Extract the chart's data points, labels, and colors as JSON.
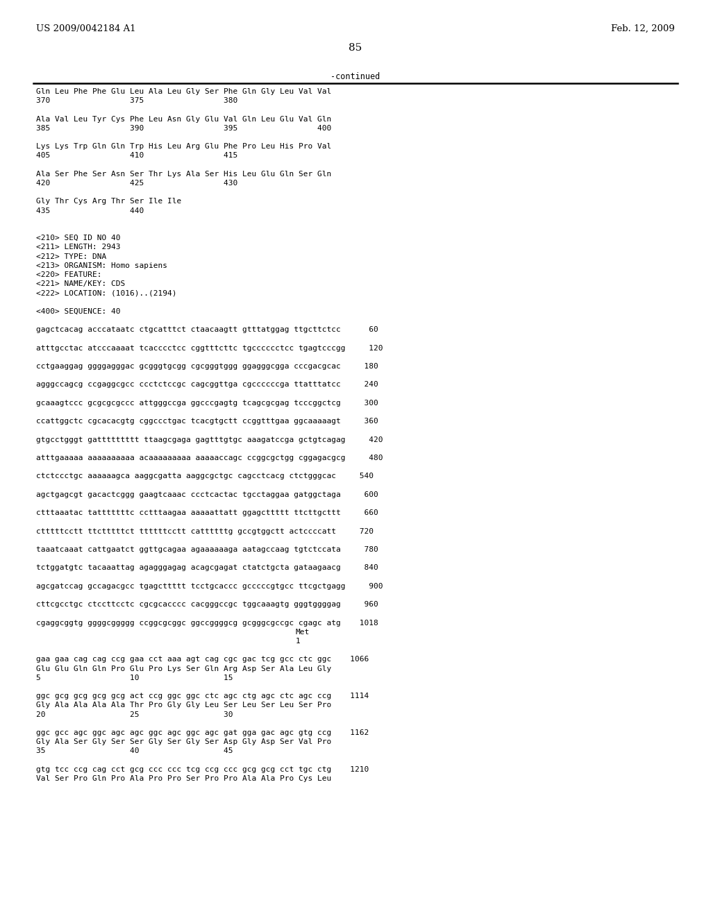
{
  "header_left": "US 2009/0042184 A1",
  "header_right": "Feb. 12, 2009",
  "page_number": "85",
  "continued_text": "-continued",
  "background_color": "#ffffff",
  "text_color": "#000000",
  "lines": [
    {
      "text": "Gln Leu Phe Phe Glu Leu Ala Leu Gly Ser Phe Gln Gly Leu Val Val",
      "empty": false
    },
    {
      "text": "370                 375                 380",
      "empty": false
    },
    {
      "text": "",
      "empty": true
    },
    {
      "text": "Ala Val Leu Tyr Cys Phe Leu Asn Gly Glu Val Gln Leu Glu Val Gln",
      "empty": false
    },
    {
      "text": "385                 390                 395                 400",
      "empty": false
    },
    {
      "text": "",
      "empty": true
    },
    {
      "text": "Lys Lys Trp Gln Gln Trp His Leu Arg Glu Phe Pro Leu His Pro Val",
      "empty": false
    },
    {
      "text": "405                 410                 415",
      "empty": false
    },
    {
      "text": "",
      "empty": true
    },
    {
      "text": "Ala Ser Phe Ser Asn Ser Thr Lys Ala Ser His Leu Glu Gln Ser Gln",
      "empty": false
    },
    {
      "text": "420                 425                 430",
      "empty": false
    },
    {
      "text": "",
      "empty": true
    },
    {
      "text": "Gly Thr Cys Arg Thr Ser Ile Ile",
      "empty": false
    },
    {
      "text": "435                 440",
      "empty": false
    },
    {
      "text": "",
      "empty": true
    },
    {
      "text": "",
      "empty": true
    },
    {
      "text": "<210> SEQ ID NO 40",
      "empty": false
    },
    {
      "text": "<211> LENGTH: 2943",
      "empty": false
    },
    {
      "text": "<212> TYPE: DNA",
      "empty": false
    },
    {
      "text": "<213> ORGANISM: Homo sapiens",
      "empty": false
    },
    {
      "text": "<220> FEATURE:",
      "empty": false
    },
    {
      "text": "<221> NAME/KEY: CDS",
      "empty": false
    },
    {
      "text": "<222> LOCATION: (1016)..(2194)",
      "empty": false
    },
    {
      "text": "",
      "empty": true
    },
    {
      "text": "<400> SEQUENCE: 40",
      "empty": false
    },
    {
      "text": "",
      "empty": true
    },
    {
      "text": "gagctcacag acccataatc ctgcatttct ctaacaagtt gtttatggag ttgcttctcc      60",
      "empty": false
    },
    {
      "text": "",
      "empty": true
    },
    {
      "text": "atttgcctac atcccaaaat tcacccctcc cggtttcttc tgcccccctcc tgagtcccgg     120",
      "empty": false
    },
    {
      "text": "",
      "empty": true
    },
    {
      "text": "cctgaaggag ggggagggac gcgggtgcgg cgcgggtggg ggagggcgga cccgacgcac     180",
      "empty": false
    },
    {
      "text": "",
      "empty": true
    },
    {
      "text": "agggccagcg ccgaggcgcc ccctctccgc cagcggttga cgccccccga ttatttatcc     240",
      "empty": false
    },
    {
      "text": "",
      "empty": true
    },
    {
      "text": "gcaaagtccc gcgcgcgccc attgggccga ggcccgagtg tcagcgcgag tcccggctcg     300",
      "empty": false
    },
    {
      "text": "",
      "empty": true
    },
    {
      "text": "ccattggctc cgcacacgtg cggccctgac tcacgtgctt ccggtttgaa ggcaaaaagt     360",
      "empty": false
    },
    {
      "text": "",
      "empty": true
    },
    {
      "text": "gtgcctgggt gattttttttt ttaagcgaga gagtttgtgc aaagatccga gctgtcagag     420",
      "empty": false
    },
    {
      "text": "",
      "empty": true
    },
    {
      "text": "atttgaaaaa aaaaaaaaaa acaaaaaaaaa aaaaaccagc ccggcgctgg cggagacgcg     480",
      "empty": false
    },
    {
      "text": "",
      "empty": true
    },
    {
      "text": "ctctccctgc aaaaaagca aaggcgatta aaggcgctgc cagcctcacg ctctgggcac     540",
      "empty": false
    },
    {
      "text": "",
      "empty": true
    },
    {
      "text": "agctgagcgt gacactcggg gaagtcaaac ccctcactac tgcctaggaa gatggctaga     600",
      "empty": false
    },
    {
      "text": "",
      "empty": true
    },
    {
      "text": "ctttaaatac tatttttttc cctttaagaa aaaaattatt ggagcttttt ttcttgcttt     660",
      "empty": false
    },
    {
      "text": "",
      "empty": true
    },
    {
      "text": "ctttttcctt ttctttttct ttttttcctt cattttttg gccgtggctt actccccatt     720",
      "empty": false
    },
    {
      "text": "",
      "empty": true
    },
    {
      "text": "taaatcaaat cattgaatct ggttgcagaa agaaaaaaga aatagccaag tgtctccata     780",
      "empty": false
    },
    {
      "text": "",
      "empty": true
    },
    {
      "text": "tctggatgtc tacaaattag agagggagag acagcgagat ctatctgcta gataagaacg     840",
      "empty": false
    },
    {
      "text": "",
      "empty": true
    },
    {
      "text": "agcgatccag gccagacgcc tgagcttttt tcctgcaccc gcccccgtgcc ttcgctgagg     900",
      "empty": false
    },
    {
      "text": "",
      "empty": true
    },
    {
      "text": "cttcgcctgc ctccttcctc cgcgcacccc cacgggccgc tggcaaagtg gggtggggag     960",
      "empty": false
    },
    {
      "text": "",
      "empty": true
    },
    {
      "text": "cgaggcggtg ggggcggggg ccggcgcggc ggccggggcg gcgggcgccgc cgagc atg    1018",
      "empty": false
    },
    {
      "text": "Met",
      "empty": false,
      "indent": 68
    },
    {
      "text": "1",
      "empty": false,
      "indent": 68
    },
    {
      "text": "",
      "empty": true
    },
    {
      "text": "gaa gaa cag cag ccg gaa cct aaa agt cag cgc gac tcg gcc ctc ggc    1066",
      "empty": false
    },
    {
      "text": "Glu Glu Gln Gln Pro Glu Pro Lys Ser Gln Arg Asp Ser Ala Leu Gly",
      "empty": false
    },
    {
      "text": "5                   10                  15",
      "empty": false
    },
    {
      "text": "",
      "empty": true
    },
    {
      "text": "ggc gcg gcg gcg gcg act ccg ggc ggc ctc agc ctg agc ctc agc ccg    1114",
      "empty": false
    },
    {
      "text": "Gly Ala Ala Ala Ala Thr Pro Gly Gly Leu Ser Leu Ser Leu Ser Pro",
      "empty": false
    },
    {
      "text": "20                  25                  30",
      "empty": false
    },
    {
      "text": "",
      "empty": true
    },
    {
      "text": "ggc gcc agc ggc agc agc ggc agc ggc agc gat gga gac agc gtg ccg    1162",
      "empty": false
    },
    {
      "text": "Gly Ala Ser Gly Ser Ser Gly Ser Gly Ser Asp Gly Asp Ser Val Pro",
      "empty": false
    },
    {
      "text": "35                  40                  45",
      "empty": false
    },
    {
      "text": "",
      "empty": true
    },
    {
      "text": "gtg tcc ccg cag cct gcg ccc ccc tcg ccg ccc gcg gcg cct tgc ctg    1210",
      "empty": false
    },
    {
      "text": "Val Ser Pro Gln Pro Ala Pro Pro Ser Pro Pro Ala Ala Pro Cys Leu",
      "empty": false
    }
  ]
}
